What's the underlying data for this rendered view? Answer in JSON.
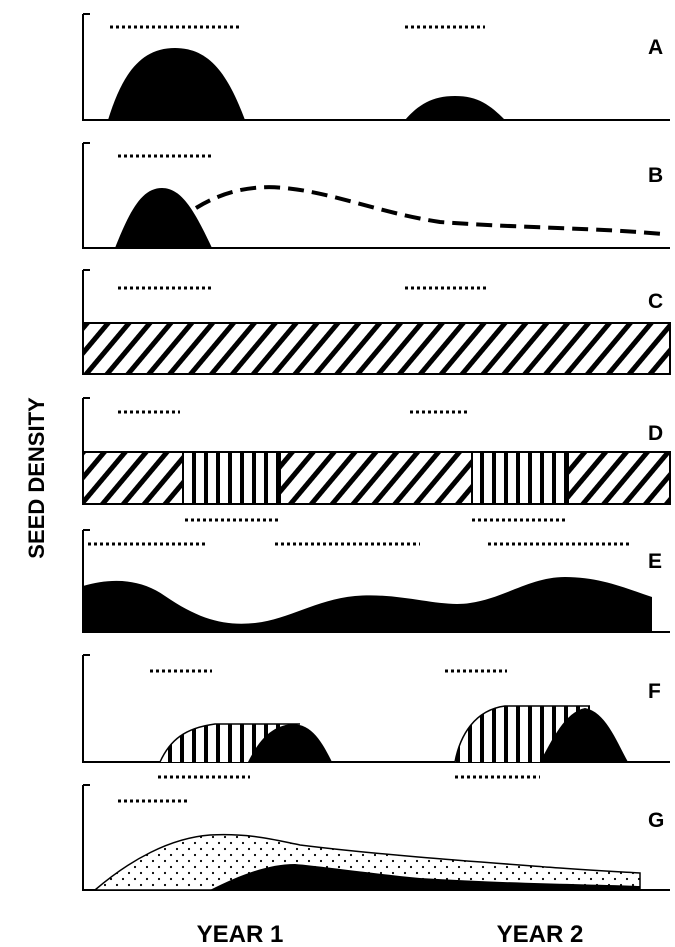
{
  "axis": {
    "y_title": "SEED DENSITY"
  },
  "x_labels": [
    {
      "id": "year-1",
      "text": "YEAR 1"
    },
    {
      "id": "year-2",
      "text": "YEAR 2"
    }
  ],
  "panels": [
    {
      "id": "a",
      "label": "A"
    },
    {
      "id": "b",
      "label": "B"
    },
    {
      "id": "c",
      "label": "C"
    },
    {
      "id": "d",
      "label": "D"
    },
    {
      "id": "e",
      "label": "E"
    },
    {
      "id": "f",
      "label": "F"
    },
    {
      "id": "g",
      "label": "G"
    }
  ]
}
